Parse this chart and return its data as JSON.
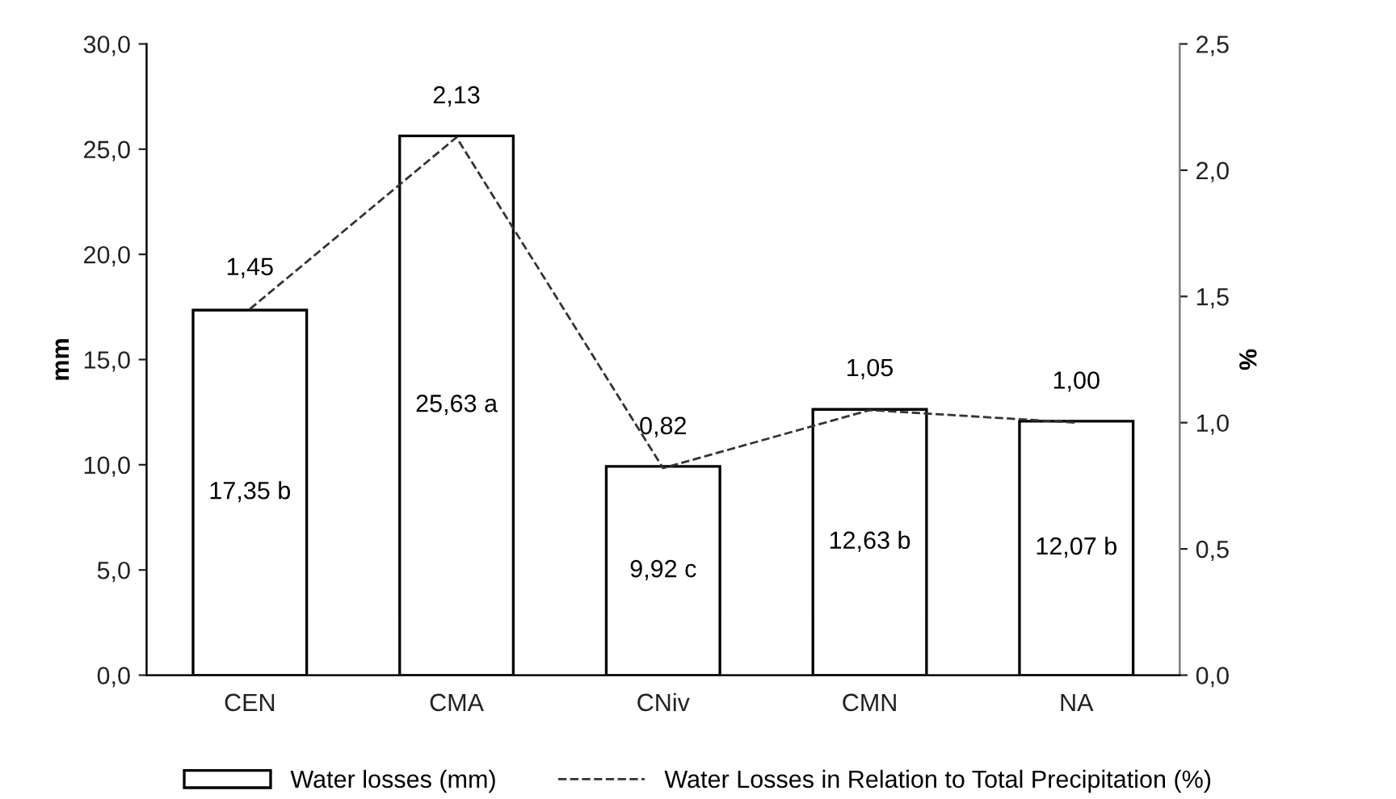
{
  "chart_data": {
    "type": "bar",
    "categories": [
      "CEN",
      "CMA",
      "CNiv",
      "CMN",
      "NA"
    ],
    "ylabel": "mm",
    "y2label": "%",
    "series": [
      {
        "name": "Water losses (mm)",
        "color": "#ffffff",
        "values": [
          17.35,
          25.63,
          9.92,
          12.63,
          12.07
        ],
        "value_labels": [
          "17,35 b",
          "25,63 a",
          "9,92 c",
          "12,63 b",
          "12,07 b"
        ]
      },
      {
        "name": "Water Losses in Relation to Total Precipitation (%)",
        "type": "line",
        "axis": "y2",
        "color": "#333333",
        "line_style": "dashed",
        "marker": "none",
        "values": [
          1.45,
          2.13,
          0.82,
          1.05,
          1.0
        ],
        "value_labels": [
          "1,45",
          "2,13",
          "0,82",
          "1,05",
          "1,00"
        ]
      }
    ],
    "ylim": [
      0,
      30
    ],
    "yticks": [
      {
        "value": 0,
        "label": "0,0"
      },
      {
        "value": 5,
        "label": "5,0"
      },
      {
        "value": 10,
        "label": "10,0"
      },
      {
        "value": 15,
        "label": "15,0"
      },
      {
        "value": 20,
        "label": "20,0"
      },
      {
        "value": 25,
        "label": "25,0"
      },
      {
        "value": 30,
        "label": "30,0"
      }
    ],
    "y2lim": [
      0,
      2.5
    ],
    "y2ticks": [
      {
        "value": 0,
        "label": "0,0"
      },
      {
        "value": 0.5,
        "label": "0,5"
      },
      {
        "value": 1,
        "label": "1,0"
      },
      {
        "value": 1.5,
        "label": "1,5"
      },
      {
        "value": 2,
        "label": "2,0"
      },
      {
        "value": 2.5,
        "label": "2,5"
      }
    ],
    "grid": false,
    "legend": "bottom"
  }
}
